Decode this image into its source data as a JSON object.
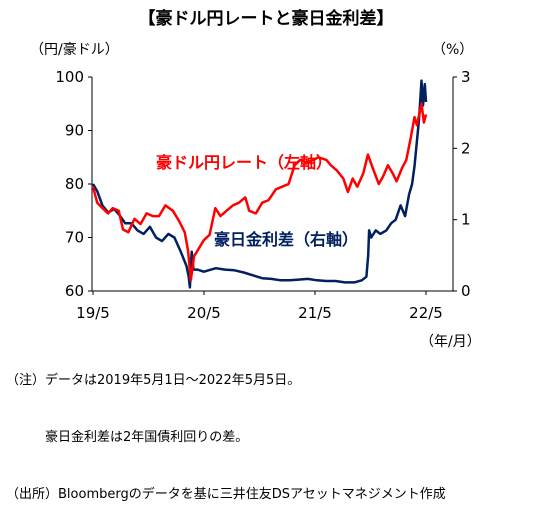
{
  "chart_data": {
    "type": "line",
    "title": "【豪ドル円レートと豪日金利差】",
    "y_left_unit": "（円/豪ドル）",
    "y_right_unit": "（%）",
    "x_unit": "（年/月）",
    "x_ticks": [
      "19/5",
      "20/5",
      "21/5",
      "22/5"
    ],
    "y_left_ticks": [
      "60",
      "70",
      "80",
      "90",
      "100"
    ],
    "y_right_ticks": [
      "0",
      "1",
      "2",
      "3"
    ],
    "y_left_range": [
      60,
      100
    ],
    "y_right_range": [
      0,
      3
    ],
    "x_range": [
      "2019-05-01",
      "2022-05-05"
    ],
    "grid": false,
    "series": [
      {
        "name": "豪ドル円レート（左軸）",
        "axis": "left",
        "color": "#ff0000",
        "points": [
          [
            "2019-05-01",
            79.5
          ],
          [
            "2019-05-15",
            76.5
          ],
          [
            "2019-06-01",
            75.5
          ],
          [
            "2019-06-20",
            74.5
          ],
          [
            "2019-07-05",
            75.5
          ],
          [
            "2019-07-25",
            75.0
          ],
          [
            "2019-08-08",
            71.5
          ],
          [
            "2019-08-26",
            71.0
          ],
          [
            "2019-09-15",
            73.5
          ],
          [
            "2019-10-05",
            72.5
          ],
          [
            "2019-10-25",
            74.5
          ],
          [
            "2019-11-15",
            74.0
          ],
          [
            "2019-12-05",
            74.0
          ],
          [
            "2019-12-26",
            76.0
          ],
          [
            "2020-01-20",
            75.0
          ],
          [
            "2020-02-10",
            73.0
          ],
          [
            "2020-02-28",
            71.0
          ],
          [
            "2020-03-10",
            67.5
          ],
          [
            "2020-03-19",
            62.0
          ],
          [
            "2020-03-30",
            66.5
          ],
          [
            "2020-04-15",
            68.0
          ],
          [
            "2020-05-01",
            69.5
          ],
          [
            "2020-05-20",
            70.5
          ],
          [
            "2020-06-08",
            75.5
          ],
          [
            "2020-06-25",
            74.0
          ],
          [
            "2020-07-15",
            75.0
          ],
          [
            "2020-08-05",
            76.0
          ],
          [
            "2020-08-25",
            76.5
          ],
          [
            "2020-09-15",
            77.5
          ],
          [
            "2020-09-28",
            75.0
          ],
          [
            "2020-10-20",
            74.5
          ],
          [
            "2020-11-10",
            76.5
          ],
          [
            "2020-12-01",
            77.0
          ],
          [
            "2020-12-25",
            79.0
          ],
          [
            "2021-01-15",
            79.5
          ],
          [
            "2021-02-05",
            80.0
          ],
          [
            "2021-02-25",
            83.5
          ],
          [
            "2021-03-15",
            84.5
          ],
          [
            "2021-04-05",
            84.0
          ],
          [
            "2021-04-28",
            84.5
          ],
          [
            "2021-05-15",
            85.0
          ],
          [
            "2021-06-10",
            84.5
          ],
          [
            "2021-06-25",
            83.5
          ],
          [
            "2021-07-15",
            82.5
          ],
          [
            "2021-08-05",
            81.0
          ],
          [
            "2021-08-20",
            78.5
          ],
          [
            "2021-09-05",
            81.0
          ],
          [
            "2021-09-20",
            79.5
          ],
          [
            "2021-10-10",
            82.0
          ],
          [
            "2021-10-25",
            85.5
          ],
          [
            "2021-11-10",
            83.0
          ],
          [
            "2021-11-30",
            80.0
          ],
          [
            "2021-12-15",
            81.5
          ],
          [
            "2021-12-30",
            83.5
          ],
          [
            "2022-01-15",
            82.0
          ],
          [
            "2022-01-28",
            80.5
          ],
          [
            "2022-02-15",
            83.0
          ],
          [
            "2022-03-01",
            84.5
          ],
          [
            "2022-03-15",
            88.5
          ],
          [
            "2022-03-28",
            92.5
          ],
          [
            "2022-04-05",
            91.0
          ],
          [
            "2022-04-20",
            95.0
          ],
          [
            "2022-04-28",
            91.5
          ],
          [
            "2022-05-05",
            93.0
          ]
        ]
      },
      {
        "name": "豪日金利差（右軸）",
        "axis": "right",
        "color": "#002060",
        "points": [
          [
            "2019-05-01",
            1.5
          ],
          [
            "2019-05-15",
            1.4
          ],
          [
            "2019-06-01",
            1.2
          ],
          [
            "2019-06-20",
            1.1
          ],
          [
            "2019-07-10",
            1.15
          ],
          [
            "2019-07-30",
            1.05
          ],
          [
            "2019-08-15",
            0.95
          ],
          [
            "2019-09-05",
            0.95
          ],
          [
            "2019-09-25",
            0.85
          ],
          [
            "2019-10-15",
            0.8
          ],
          [
            "2019-11-05",
            0.9
          ],
          [
            "2019-11-25",
            0.75
          ],
          [
            "2019-12-15",
            0.7
          ],
          [
            "2020-01-05",
            0.8
          ],
          [
            "2020-01-25",
            0.75
          ],
          [
            "2020-02-15",
            0.55
          ],
          [
            "2020-03-05",
            0.35
          ],
          [
            "2020-03-12",
            0.2
          ],
          [
            "2020-03-16",
            0.05
          ],
          [
            "2020-03-22",
            0.55
          ],
          [
            "2020-03-28",
            0.3
          ],
          [
            "2020-04-10",
            0.3
          ],
          [
            "2020-05-01",
            0.27
          ],
          [
            "2020-06-10",
            0.32
          ],
          [
            "2020-07-10",
            0.3
          ],
          [
            "2020-08-10",
            0.29
          ],
          [
            "2020-09-10",
            0.26
          ],
          [
            "2020-10-10",
            0.22
          ],
          [
            "2020-11-10",
            0.18
          ],
          [
            "2020-12-10",
            0.17
          ],
          [
            "2021-01-10",
            0.15
          ],
          [
            "2021-02-10",
            0.15
          ],
          [
            "2021-03-10",
            0.16
          ],
          [
            "2021-04-10",
            0.17
          ],
          [
            "2021-05-10",
            0.15
          ],
          [
            "2021-06-10",
            0.14
          ],
          [
            "2021-07-10",
            0.14
          ],
          [
            "2021-08-10",
            0.12
          ],
          [
            "2021-09-10",
            0.12
          ],
          [
            "2021-10-05",
            0.15
          ],
          [
            "2021-10-20",
            0.2
          ],
          [
            "2021-10-26",
            0.5
          ],
          [
            "2021-10-29",
            0.85
          ],
          [
            "2021-11-05",
            0.75
          ],
          [
            "2021-11-20",
            0.85
          ],
          [
            "2021-12-05",
            0.8
          ],
          [
            "2021-12-25",
            0.85
          ],
          [
            "2022-01-10",
            0.95
          ],
          [
            "2022-01-25",
            1.0
          ],
          [
            "2022-02-10",
            1.2
          ],
          [
            "2022-02-25",
            1.05
          ],
          [
            "2022-03-10",
            1.35
          ],
          [
            "2022-03-20",
            1.5
          ],
          [
            "2022-03-28",
            1.75
          ],
          [
            "2022-04-05",
            2.1
          ],
          [
            "2022-04-12",
            2.4
          ],
          [
            "2022-04-20",
            2.95
          ],
          [
            "2022-04-25",
            2.6
          ],
          [
            "2022-05-01",
            2.9
          ],
          [
            "2022-05-05",
            2.65
          ]
        ]
      }
    ]
  },
  "notes": [
    "（注）データは2019年5月1日～2022年5月5日。",
    "　　　豪日金利差は2年国債利回りの差。",
    "（出所）Bloombergのデータを基に三井住友DSアセットマネジメント作成"
  ]
}
